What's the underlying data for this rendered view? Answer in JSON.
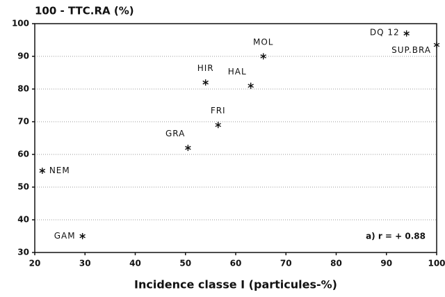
{
  "chart_data": {
    "type": "scatter",
    "title": "100 - TTC.RA (%)",
    "x_label": "Incidence classe I (particules-%)",
    "annotation": "a) r = + 0.88",
    "labels": [
      "NEM",
      "GAM",
      "GRA",
      "HIR",
      "FRI",
      "HAL",
      "MOL",
      "DQ 12",
      "SUP.BRA"
    ],
    "x": [
      21.5,
      29.5,
      50.5,
      54,
      56.5,
      63,
      65.5,
      94,
      100
    ],
    "y": [
      55,
      35,
      62,
      82,
      69,
      81,
      90,
      97,
      93.5
    ],
    "color": "#111111",
    "xlim": [
      20,
      100
    ],
    "xticks": [
      20,
      30,
      40,
      50,
      60,
      70,
      80,
      90,
      100
    ],
    "ylim": [
      30,
      100
    ],
    "yticks": [
      30,
      40,
      50,
      60,
      70,
      80,
      90,
      100
    ],
    "grid": true
  }
}
